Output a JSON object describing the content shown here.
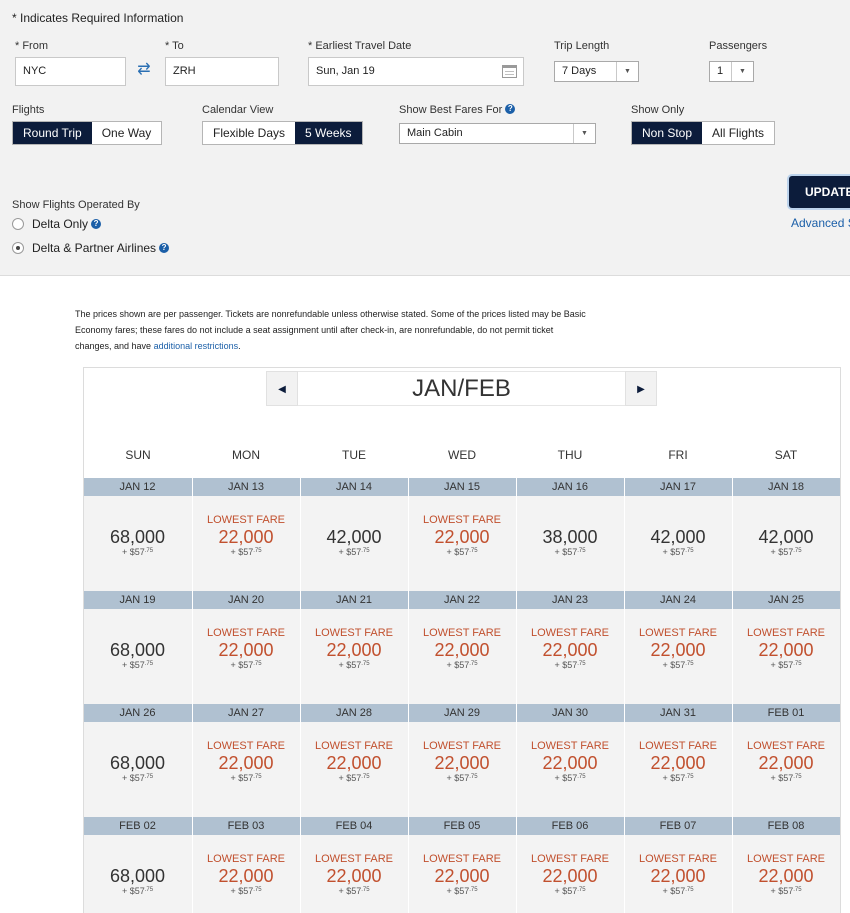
{
  "form": {
    "required_note": "* Indicates Required Information",
    "from_label": "* From",
    "from_value": "NYC",
    "to_label": "* To",
    "to_value": "ZRH",
    "date_label": "* Earliest Travel Date",
    "date_value": "Sun, Jan 19",
    "trip_length_label": "Trip Length",
    "trip_length_value": "7 Days",
    "passengers_label": "Passengers",
    "passengers_value": "1",
    "flights_label": "Flights",
    "flights_options": [
      "Round Trip",
      "One Way"
    ],
    "flights_selected": "Round Trip",
    "calendar_view_label": "Calendar View",
    "calendar_view_options": [
      "Flexible Days",
      "5 Weeks"
    ],
    "calendar_view_selected": "5 Weeks",
    "best_fares_label": "Show Best Fares For",
    "best_fares_value": "Main Cabin",
    "show_only_label": "Show Only",
    "show_only_options": [
      "Non Stop",
      "All Flights"
    ],
    "show_only_selected": "Non Stop",
    "operated_by_label": "Show Flights Operated By",
    "operated_by_options": [
      "Delta Only",
      "Delta & Partner Airlines"
    ],
    "operated_by_selected": "Delta & Partner Airlines",
    "update_label": "UPDATE",
    "advanced_label": "Advanced Se"
  },
  "disclaimer": {
    "text": "The prices shown are per passenger. Tickets are nonrefundable unless otherwise stated. Some of the prices listed may be Basic Economy fares; these fares do not include a seat assignment until after check-in, are nonrefundable, do not permit ticket changes, and have ",
    "link": "additional restrictions",
    "end": "."
  },
  "calendar": {
    "month_title": "JAN/FEB",
    "days_of_week": [
      "SUN",
      "MON",
      "TUE",
      "WED",
      "THU",
      "FRI",
      "SAT"
    ],
    "lowest_label": "LOWEST FARE",
    "tax_prefix": "+ $57",
    "tax_cents": ".75",
    "weeks": [
      {
        "dates": [
          "JAN 12",
          "JAN 13",
          "JAN 14",
          "JAN 15",
          "JAN 16",
          "JAN 17",
          "JAN 18"
        ],
        "fares": [
          "68,000",
          "22,000",
          "42,000",
          "22,000",
          "38,000",
          "42,000",
          "42,000"
        ],
        "lowest": [
          false,
          true,
          false,
          true,
          false,
          false,
          false
        ]
      },
      {
        "dates": [
          "JAN 19",
          "JAN 20",
          "JAN 21",
          "JAN 22",
          "JAN 23",
          "JAN 24",
          "JAN 25"
        ],
        "fares": [
          "68,000",
          "22,000",
          "22,000",
          "22,000",
          "22,000",
          "22,000",
          "22,000"
        ],
        "lowest": [
          false,
          true,
          true,
          true,
          true,
          true,
          true
        ]
      },
      {
        "dates": [
          "JAN 26",
          "JAN 27",
          "JAN 28",
          "JAN 29",
          "JAN 30",
          "JAN 31",
          "FEB 01"
        ],
        "fares": [
          "68,000",
          "22,000",
          "22,000",
          "22,000",
          "22,000",
          "22,000",
          "22,000"
        ],
        "lowest": [
          false,
          true,
          true,
          true,
          true,
          true,
          true
        ]
      },
      {
        "dates": [
          "FEB 02",
          "FEB 03",
          "FEB 04",
          "FEB 05",
          "FEB 06",
          "FEB 07",
          "FEB 08"
        ],
        "fares": [
          "68,000",
          "22,000",
          "22,000",
          "22,000",
          "22,000",
          "22,000",
          "22,000"
        ],
        "lowest": [
          false,
          true,
          true,
          true,
          true,
          true,
          true
        ]
      }
    ]
  },
  "colors": {
    "navy": "#0c1c3b",
    "lowest": "#c1502e",
    "link": "#1b5fa8",
    "week_header": "#b0c1d1"
  }
}
